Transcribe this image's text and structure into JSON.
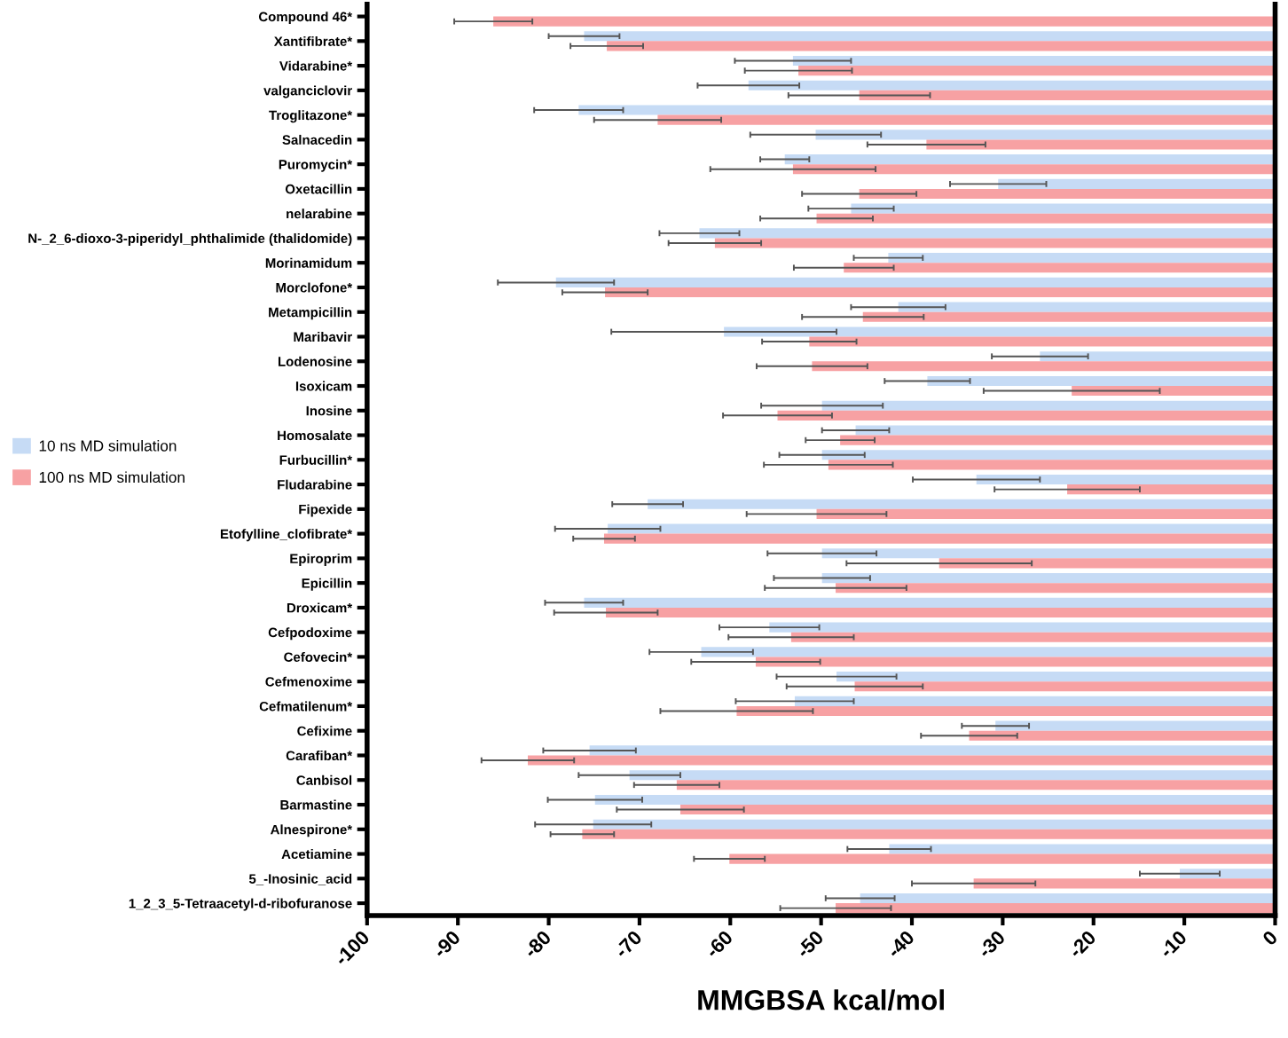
{
  "chart_data": {
    "type": "bar",
    "orientation": "horizontal",
    "xlabel": "MMGBSA kcal/mol",
    "categories": [
      "Compound 46*",
      "Xantifibrate*",
      "Vidarabine*",
      "valganciclovir",
      "Troglitazone*",
      "Salnacedin",
      "Puromycin*",
      "Oxetacillin",
      "nelarabine",
      "N-_2_6-dioxo-3-piperidyl_phthalimide (thalidomide)",
      "Morinamidum",
      "Morclofone*",
      "Metampicillin",
      "Maribavir",
      "Lodenosine",
      "Isoxicam",
      "Inosine",
      "Homosalate",
      "Furbucillin*",
      "Fludarabine",
      "Fipexide",
      "Etofylline_clofibrate*",
      "Epiroprim",
      "Epicillin",
      "Droxicam*",
      "Cefpodoxime",
      "Cefovecin*",
      "Cefmenoxime",
      "Cefmatilenum*",
      "Cefixime",
      "Carafiban*",
      "Canbisol",
      "Barmastine",
      "Alnespirone*",
      "Acetiamine",
      "5_-Inosinic_acid",
      "1_2_3_5-Tetraacetyl-d-ribofuranose"
    ],
    "series": [
      {
        "name": "10 ns MD simulation",
        "color": "#c6dbf5",
        "values": [
          null,
          -76.1,
          -53.1,
          -58.0,
          -76.7,
          -50.6,
          -54.0,
          -30.5,
          -46.7,
          -63.4,
          -42.6,
          -79.2,
          -41.5,
          -60.7,
          -25.9,
          -38.3,
          -49.9,
          -46.2,
          -49.9,
          -32.9,
          -69.1,
          -73.5,
          -49.9,
          -49.9,
          -76.1,
          -55.7,
          -63.2,
          -48.3,
          -52.9,
          -30.8,
          -75.5,
          -71.1,
          -74.9,
          -75.1,
          -42.5,
          -10.5,
          -45.7
        ],
        "errors": [
          null,
          3.9,
          6.4,
          5.6,
          4.9,
          7.2,
          2.7,
          5.3,
          4.7,
          4.4,
          3.8,
          6.4,
          5.2,
          12.4,
          5.3,
          4.7,
          6.7,
          3.7,
          4.7,
          7.0,
          3.9,
          5.8,
          6.0,
          5.3,
          4.3,
          5.5,
          5.7,
          6.6,
          6.5,
          3.7,
          5.1,
          5.6,
          5.2,
          6.4,
          4.6,
          4.4,
          3.8
        ]
      },
      {
        "name": "100 ns MD simulation",
        "color": "#f7a1a3",
        "values": [
          -86.1,
          -73.6,
          -52.5,
          -45.8,
          -68.0,
          -38.4,
          -53.1,
          -45.8,
          -50.5,
          -61.7,
          -47.5,
          -73.8,
          -45.4,
          -51.3,
          -51.0,
          -22.4,
          -54.8,
          -47.9,
          -49.2,
          -22.9,
          -50.5,
          -73.9,
          -37.0,
          -48.4,
          -73.7,
          -53.3,
          -57.2,
          -46.3,
          -59.3,
          -33.7,
          -82.3,
          -65.9,
          -65.5,
          -76.3,
          -60.1,
          -33.2,
          -48.4
        ],
        "errors": [
          4.3,
          4.0,
          5.9,
          7.8,
          7.0,
          6.5,
          9.1,
          6.3,
          6.2,
          5.1,
          5.5,
          4.7,
          6.7,
          5.2,
          6.1,
          9.7,
          6.0,
          3.8,
          7.1,
          8.0,
          7.7,
          3.4,
          10.2,
          7.8,
          5.7,
          6.9,
          7.1,
          7.5,
          8.4,
          5.3,
          5.1,
          4.7,
          7.0,
          3.5,
          3.9,
          6.8,
          6.1
        ]
      }
    ],
    "xlim": [
      -100,
      0
    ],
    "xticks": [
      -100,
      -90,
      -80,
      -70,
      -60,
      -50,
      -40,
      -30,
      -20,
      -10,
      0
    ],
    "grid": false,
    "legend": "left"
  }
}
